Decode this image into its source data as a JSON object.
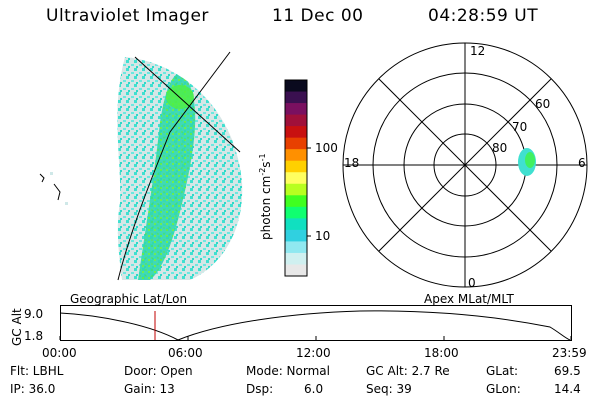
{
  "header": {
    "instrument": "Ultraviolet Imager",
    "date": "11 Dec 00",
    "time": "04:28:59 UT"
  },
  "colorbar": {
    "unit_label": "photon cm",
    "unit_exp1": "-2",
    "unit_s": "s",
    "unit_exp2": "-1",
    "ticks": [
      "100",
      "10"
    ],
    "colors": [
      "#0a0a1e",
      "#3a1050",
      "#7a1060",
      "#a0103a",
      "#c81010",
      "#e84000",
      "#ff9000",
      "#ffd000",
      "#ffff60",
      "#b8ff20",
      "#40ff20",
      "#10ff70",
      "#10e0c0",
      "#30d0e0",
      "#90e8f0",
      "#d0f0f0",
      "#e8e8e8"
    ]
  },
  "left_panel": {
    "caption": "Geographic Lat/Lon"
  },
  "right_panel": {
    "caption": "Apex MLat/MLT",
    "mlt_labels": {
      "top": "12",
      "left": "18",
      "right": "6",
      "bottom": "0"
    },
    "lat_labels": [
      "60",
      "70",
      "80"
    ]
  },
  "altitude_plot": {
    "ylabel": "GC Alt",
    "yticks": [
      "9.0",
      "1.8"
    ],
    "xticks": [
      "00:00",
      "06:00",
      "12:00",
      "18:00",
      "23:59"
    ],
    "marker_color": "#c00000"
  },
  "info": {
    "flt": "Flt: LBHL",
    "ip": "IP: 36.0",
    "door": "Door: Open",
    "gain": "Gain: 13",
    "mode": "Mode: Normal",
    "dsp_label": "Dsp:",
    "dsp_value": "6.0",
    "gcalt": "GC Alt: 2.7 Re",
    "seq": "Seq: 39",
    "glat_label": "GLat:",
    "glat_value": "69.5",
    "glon_label": "GLon:",
    "glon_value": "14.4"
  }
}
